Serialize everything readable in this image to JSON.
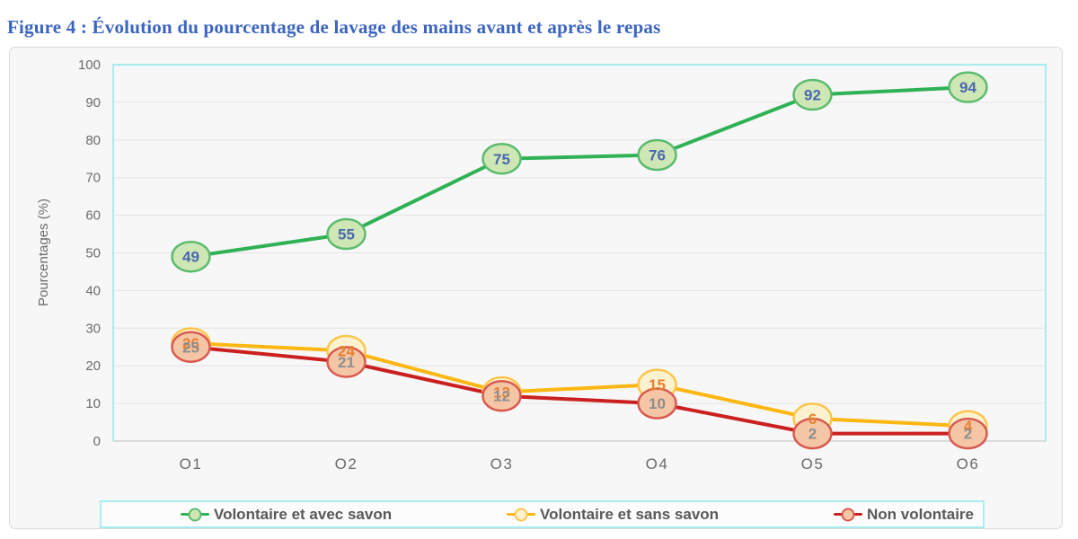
{
  "title": "Figure 4 : Évolution du pourcentage de lavage des mains avant et après le repas",
  "chart_data": {
    "type": "line",
    "categories": [
      "O1",
      "O2",
      "O3",
      "O4",
      "O5",
      "O6"
    ],
    "series": [
      {
        "name": "Volontaire et avec savon",
        "values": [
          49,
          55,
          75,
          76,
          92,
          94
        ],
        "line_color": "#2fb155",
        "marker_fill": "#cfe7b4",
        "marker_border": "#5bbb6e",
        "label_color": "#4a67b0"
      },
      {
        "name": "Volontaire et sans savon",
        "values": [
          26,
          24,
          13,
          15,
          6,
          4
        ],
        "line_color": "#fcb712",
        "marker_fill": "#fdf2cf",
        "marker_border": "#fcc64b",
        "label_color": "#e87f2e"
      },
      {
        "name": "Non volontaire",
        "values": [
          25,
          21,
          12,
          10,
          2,
          2
        ],
        "line_color": "#ca2120",
        "marker_fill": "#f4c6a5",
        "marker_border": "#d85950",
        "label_color": "#8e8e8e"
      }
    ],
    "xlabel": "",
    "ylabel": "Pourcentages (%)",
    "ylim": [
      0,
      100
    ],
    "ytick_step": 10,
    "grid": true,
    "legend_position": "bottom"
  },
  "style": {
    "title_color": "#3b64c1",
    "card_bg": "#f7f7f7",
    "card_border": "#dcdcdc",
    "plot_border": "#a9ecf2",
    "grid_color": "#e4e4e4",
    "baseline_color": "#d2d2d2",
    "axis_text_color": "#6b6b6b",
    "legend_bg": "#fcfcfc",
    "legend_text_color": "#595959"
  }
}
